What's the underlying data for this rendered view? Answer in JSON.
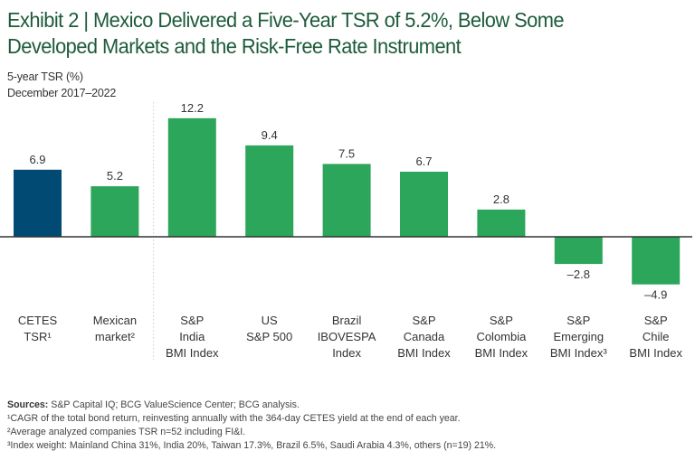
{
  "title": "Exhibit 2 | Mexico Delivered a Five-Year TSR of 5.2%, Below Some Developed Markets and the Risk-Free Rate Instrument",
  "subtitle": {
    "line1": "5-year TSR (%)",
    "line2": "December 2017–2022"
  },
  "colors": {
    "title": "#1d5b3a",
    "benchmark_bar": "#004a74",
    "market_bar": "#2ca65a",
    "axis": "#333333",
    "separator": "#cccccc"
  },
  "chart_data": {
    "type": "bar",
    "title": "Exhibit 2 | Mexico Delivered a Five-Year TSR of 5.2%, Below Some Developed Markets and the Risk-Free Rate Instrument",
    "ylabel": "5-year TSR (%)",
    "period": "December 2017–2022",
    "xlabel": "",
    "ylim": [
      -6,
      13
    ],
    "grid": false,
    "categories": [
      [
        "CETES",
        "TSR¹"
      ],
      [
        "Mexican",
        "market²"
      ],
      [
        "S&P",
        "India",
        "BMI Index"
      ],
      [
        "US",
        "S&P 500"
      ],
      [
        "Brazil",
        "IBOVESPA",
        "Index"
      ],
      [
        "S&P",
        "Canada",
        "BMI Index"
      ],
      [
        "S&P",
        "Colombia",
        "BMI Index"
      ],
      [
        "S&P",
        "Emerging",
        "BMI Index³"
      ],
      [
        "S&P",
        "Chile",
        "BMI Index"
      ]
    ],
    "values": [
      6.9,
      5.2,
      12.2,
      9.4,
      7.5,
      6.7,
      2.8,
      -2.8,
      -4.9
    ],
    "value_labels": [
      "6.9",
      "5.2",
      "12.2",
      "9.4",
      "7.5",
      "6.7",
      "2.8",
      "–2.8",
      "–4.9"
    ],
    "bar_groups": [
      "benchmark",
      "market",
      "market",
      "market",
      "market",
      "market",
      "market",
      "market",
      "market"
    ],
    "separator_after_index": 1
  },
  "footnotes": {
    "sources_label": "Sources:",
    "sources_text": " S&P Capital IQ; BCG ValueScience Center; BCG analysis.",
    "note1": "¹CAGR of the total bond return, reinvesting annually with the 364-day CETES yield at the end of each year.",
    "note2": "²Average analyzed companies TSR n=52 including FI&I.",
    "note3": "³Index weight: Mainland China 31%, India 20%, Taiwan 17.3%, Brazil 6.5%, Saudi Arabia 4.3%, others (n=19) 21%."
  }
}
